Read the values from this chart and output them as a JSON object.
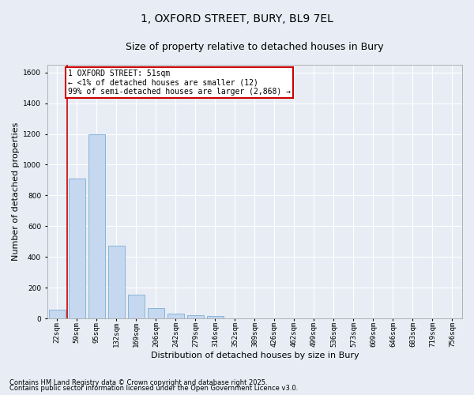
{
  "title_line1": "1, OXFORD STREET, BURY, BL9 7EL",
  "title_line2": "Size of property relative to detached houses in Bury",
  "xlabel": "Distribution of detached houses by size in Bury",
  "ylabel": "Number of detached properties",
  "categories": [
    "22sqm",
    "59sqm",
    "95sqm",
    "132sqm",
    "169sqm",
    "206sqm",
    "242sqm",
    "279sqm",
    "316sqm",
    "352sqm",
    "389sqm",
    "426sqm",
    "462sqm",
    "499sqm",
    "536sqm",
    "573sqm",
    "609sqm",
    "646sqm",
    "683sqm",
    "719sqm",
    "756sqm"
  ],
  "values": [
    55,
    910,
    1200,
    475,
    155,
    65,
    30,
    20,
    15,
    0,
    0,
    0,
    0,
    0,
    0,
    0,
    0,
    0,
    0,
    0,
    0
  ],
  "bar_color": "#c5d8ef",
  "bar_edge_color": "#7aadd4",
  "marker_color": "#cc0000",
  "annotation_text": "1 OXFORD STREET: 51sqm\n← <1% of detached houses are smaller (12)\n99% of semi-detached houses are larger (2,868) →",
  "annotation_box_facecolor": "#ffffff",
  "annotation_box_edgecolor": "#cc0000",
  "ylim": [
    0,
    1650
  ],
  "yticks": [
    0,
    200,
    400,
    600,
    800,
    1000,
    1200,
    1400,
    1600
  ],
  "background_color": "#e8edf5",
  "plot_bg_color": "#e8edf5",
  "grid_color": "#ffffff",
  "footer_line1": "Contains HM Land Registry data © Crown copyright and database right 2025.",
  "footer_line2": "Contains public sector information licensed under the Open Government Licence v3.0.",
  "title_fontsize": 10,
  "subtitle_fontsize": 9,
  "axis_label_fontsize": 8,
  "tick_fontsize": 6.5,
  "annotation_fontsize": 7,
  "footer_fontsize": 6
}
